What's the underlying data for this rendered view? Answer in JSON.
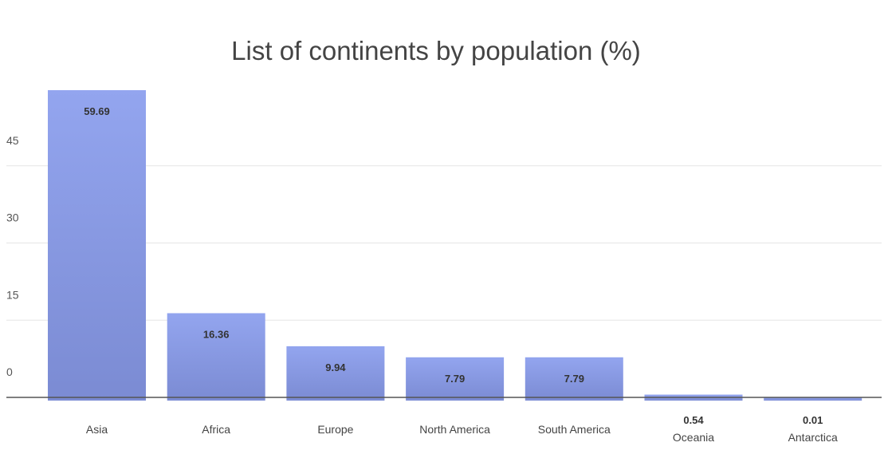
{
  "chart_data": {
    "type": "bar",
    "title": "List of continents by population (%)",
    "xlabel": "",
    "ylabel": "",
    "categories": [
      "Asia",
      "Africa",
      "Europe",
      "North America",
      "South America",
      "Oceania",
      "Antarctica"
    ],
    "values": [
      59.69,
      16.36,
      9.94,
      7.79,
      7.79,
      0.54,
      0.01
    ],
    "value_labels": [
      "59.69",
      "16.36",
      "9.94",
      "7.79",
      "7.79",
      "0.54",
      "0.01"
    ],
    "y_ticks": [
      0,
      15,
      30,
      45
    ],
    "y_tick_labels": [
      "0",
      "15",
      "30",
      "45"
    ],
    "bar_color_top": "#93a5ef",
    "bar_color_bottom": "#7b8bd3",
    "gridlines": true,
    "legend": "none"
  }
}
